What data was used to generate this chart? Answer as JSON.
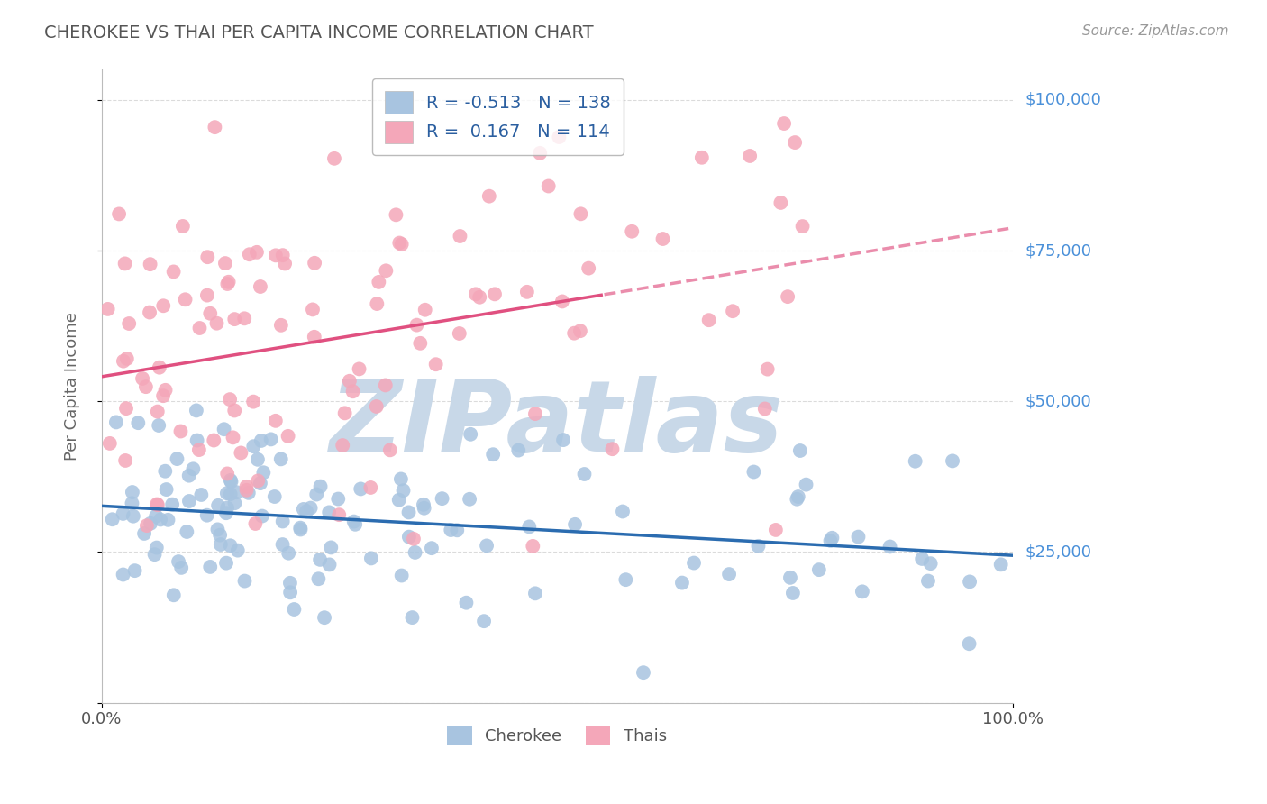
{
  "title": "CHEROKEE VS THAI PER CAPITA INCOME CORRELATION CHART",
  "source": "Source: ZipAtlas.com",
  "ylabel": "Per Capita Income",
  "xlim": [
    0,
    1
  ],
  "ylim": [
    0,
    105000
  ],
  "yticks": [
    0,
    25000,
    50000,
    75000,
    100000
  ],
  "ytick_labels": [
    "",
    "$25,000",
    "$50,000",
    "$75,000",
    "$100,000"
  ],
  "xtick_labels": [
    "0.0%",
    "100.0%"
  ],
  "legend_blue_r": "R = -0.513",
  "legend_blue_n": "N = 138",
  "legend_pink_r": "R =  0.167",
  "legend_pink_n": "N = 114",
  "legend_label_blue": "Cherokee",
  "legend_label_pink": "Thais",
  "blue_color": "#a8c4e0",
  "blue_line_color": "#2b6cb0",
  "pink_color": "#f4a7b9",
  "pink_line_color": "#e05080",
  "watermark_text": "ZIPatlas",
  "watermark_color": "#c8d8e8",
  "background_color": "#ffffff",
  "grid_color": "#cccccc",
  "title_color": "#555555",
  "right_label_color": "#4a90d9",
  "blue_n": 138,
  "pink_n": 114,
  "blue_intercept": 33000,
  "blue_slope": -12000,
  "pink_intercept": 55000,
  "pink_slope": 22000,
  "pink_solid_cutoff": 0.55
}
